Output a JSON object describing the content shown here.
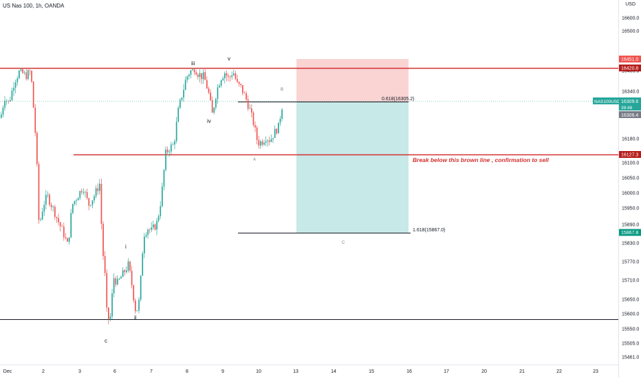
{
  "header": {
    "symbol_title": "US Nas 100, 1h, OANDA",
    "currency": "USD"
  },
  "chart_data": {
    "type": "candlestick",
    "title": "US Nas 100, 1h, OANDA",
    "xlabel": "",
    "ylabel": "USD",
    "ylim": [
      15430,
      16700
    ],
    "grid": false,
    "x_ticks": [
      "Dec",
      "2",
      "3",
      "6",
      "7",
      "8",
      "9",
      "10",
      "13",
      "14",
      "15",
      "16",
      "17",
      "20",
      "21",
      "22",
      "23"
    ],
    "y_ticks": [
      16600.0,
      16500.0,
      16400.0,
      16340.0,
      16180.0,
      16100.0,
      16050.0,
      16000.0,
      15950.0,
      15890.0,
      15830.0,
      15770.0,
      15710.0,
      15650.0,
      15600.0,
      15550.0,
      15505.0,
      15461.0
    ],
    "candles_path": [
      [
        0,
        16250
      ],
      [
        6,
        16320
      ],
      [
        12,
        16300
      ],
      [
        20,
        16370
      ],
      [
        28,
        16400
      ],
      [
        36,
        16385
      ],
      [
        44,
        16400
      ],
      [
        48,
        16280
      ],
      [
        52,
        16150
      ],
      [
        56,
        15880
      ],
      [
        62,
        15960
      ],
      [
        68,
        15990
      ],
      [
        76,
        15950
      ],
      [
        84,
        15900
      ],
      [
        92,
        15860
      ],
      [
        98,
        15820
      ],
      [
        104,
        15960
      ],
      [
        112,
        15990
      ],
      [
        120,
        16020
      ],
      [
        128,
        15960
      ],
      [
        136,
        15990
      ],
      [
        144,
        16030
      ],
      [
        148,
        15820
      ],
      [
        152,
        15720
      ],
      [
        155,
        15580
      ],
      [
        160,
        15590
      ],
      [
        164,
        15720
      ],
      [
        170,
        15700
      ],
      [
        178,
        15730
      ],
      [
        186,
        15760
      ],
      [
        192,
        15680
      ],
      [
        197,
        15600
      ],
      [
        202,
        15650
      ],
      [
        208,
        15860
      ],
      [
        214,
        15880
      ],
      [
        220,
        15870
      ],
      [
        228,
        15900
      ],
      [
        234,
        15990
      ],
      [
        240,
        16130
      ],
      [
        246,
        16150
      ],
      [
        252,
        16160
      ],
      [
        258,
        16270
      ],
      [
        264,
        16330
      ],
      [
        270,
        16380
      ],
      [
        276,
        16400
      ],
      [
        282,
        16410
      ],
      [
        288,
        16390
      ],
      [
        296,
        16380
      ],
      [
        302,
        16340
      ],
      [
        308,
        16260
      ],
      [
        314,
        16340
      ],
      [
        320,
        16380
      ],
      [
        326,
        16395
      ],
      [
        332,
        16375
      ],
      [
        338,
        16400
      ],
      [
        344,
        16360
      ],
      [
        350,
        16350
      ],
      [
        356,
        16320
      ],
      [
        362,
        16280
      ],
      [
        368,
        16230
      ],
      [
        374,
        16165
      ],
      [
        380,
        16170
      ],
      [
        386,
        16185
      ],
      [
        392,
        16175
      ],
      [
        398,
        16200
      ],
      [
        404,
        16220
      ],
      [
        410,
        16300
      ]
    ],
    "levels": [
      {
        "value": 16420.8,
        "label": "16420.8",
        "color": "#d32f2f"
      },
      {
        "value": 16127.3,
        "label": "16127.3",
        "color": "#d32f2f"
      },
      {
        "value": 15595,
        "label": "",
        "color": "#131722"
      }
    ],
    "fib_levels": [
      {
        "value": 16305.2,
        "text": "0.618(16305.2)"
      },
      {
        "value": 15867.0,
        "text": "1.618(15867.0)"
      }
    ],
    "price_labels": [
      {
        "value": 16451.0,
        "text": "16451.0",
        "color": "#ef5350"
      },
      {
        "value": 16420.8,
        "text": "16420.8",
        "color": "#b71c1c"
      },
      {
        "value": 16309.6,
        "text": "16309.6",
        "color": "#26a69a"
      },
      {
        "value": 16127.3,
        "text": "16127.3",
        "color": "#b71c1c"
      },
      {
        "value": 15867.8,
        "text": "15867.8",
        "color": "#089981"
      }
    ],
    "current_price": {
      "symbol": "NAS100USD",
      "value": "16309.6",
      "timer": "39:48",
      "secondary": "16306.4"
    },
    "position": {
      "stop": 16451.0,
      "entry": 16305.2,
      "target": 15867.0,
      "stop_color": "#f8c9c8",
      "target_color": "#b9e4e1"
    },
    "annotation": {
      "text": "Break below this brown line , confirmation to sell",
      "color": "#d32f2f"
    },
    "wave_labels": [
      "iii",
      "v",
      "B",
      "iv",
      "A",
      "i",
      "ii",
      "c",
      "C"
    ]
  }
}
